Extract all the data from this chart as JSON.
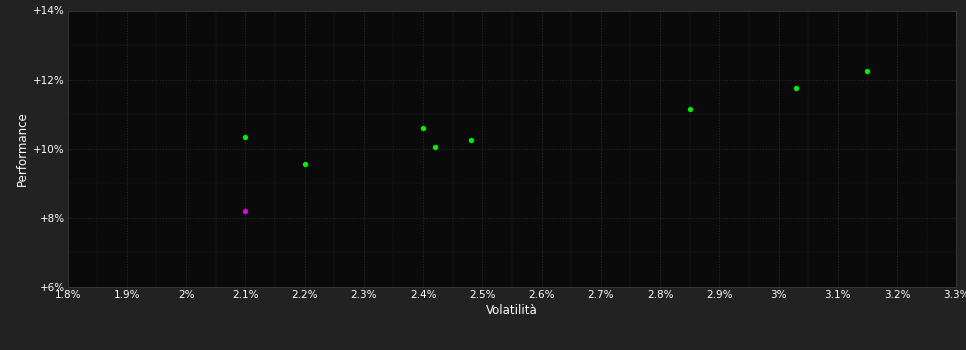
{
  "background_color": "#222222",
  "plot_bg_color": "#0a0a0a",
  "grid_color": "#404040",
  "text_color": "#ffffff",
  "xlabel": "Volatilità",
  "ylabel": "Performance",
  "xlim": [
    0.018,
    0.033
  ],
  "ylim": [
    0.06,
    0.14
  ],
  "xticks": [
    0.018,
    0.019,
    0.02,
    0.021,
    0.022,
    0.023,
    0.024,
    0.025,
    0.026,
    0.027,
    0.028,
    0.029,
    0.03,
    0.031,
    0.032,
    0.033
  ],
  "yticks": [
    0.06,
    0.08,
    0.1,
    0.12,
    0.14
  ],
  "green_points": [
    [
      0.021,
      0.1035
    ],
    [
      0.022,
      0.0955
    ],
    [
      0.024,
      0.106
    ],
    [
      0.0242,
      0.1005
    ],
    [
      0.0248,
      0.1025
    ],
    [
      0.0285,
      0.1115
    ],
    [
      0.0303,
      0.1175
    ],
    [
      0.0315,
      0.1225
    ]
  ],
  "magenta_point": [
    0.021,
    0.082
  ],
  "green_color": "#00ee00",
  "magenta_color": "#dd00dd",
  "point_size": 15,
  "tick_fontsize": 7.5,
  "label_fontsize": 8.5
}
